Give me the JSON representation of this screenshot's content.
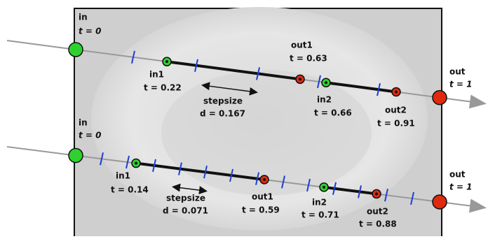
{
  "panels": [
    {
      "entry": {
        "label": "in",
        "t": "t = 0"
      },
      "in1": {
        "label": "in1",
        "t": "t = 0.22"
      },
      "out1": {
        "label": "out1",
        "t": "t = 0.63"
      },
      "in2": {
        "label": "in2",
        "t": "t = 0.66"
      },
      "out2": {
        "label": "out2",
        "t": "t = 0.91"
      },
      "exit": {
        "label": "out",
        "t": "t = 1"
      },
      "step": {
        "label": "stepsize",
        "d": "d = 0.167"
      }
    },
    {
      "entry": {
        "label": "in",
        "t": "t = 0"
      },
      "in1": {
        "label": "in1",
        "t": "t = 0.14"
      },
      "out1": {
        "label": "out1",
        "t": "t = 0.59"
      },
      "in2": {
        "label": "in2",
        "t": "t = 0.71"
      },
      "out2": {
        "label": "out2",
        "t": "t = 0.88"
      },
      "exit": {
        "label": "out",
        "t": "t = 1"
      },
      "step": {
        "label": "stepsize",
        "d": "d = 0.071"
      }
    }
  ]
}
